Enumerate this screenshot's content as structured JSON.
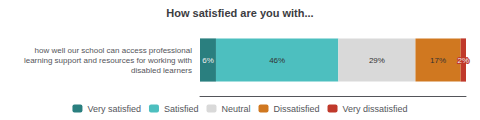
{
  "chart_data": {
    "type": "bar",
    "title": "How satisfied are you with...",
    "orientation": "horizontal",
    "stacked": true,
    "categories": [
      "how well our school can access professional\nlearning support and resources for working with\ndisabled learners"
    ],
    "series": [
      {
        "name": "Very satisfied",
        "color": "#2a7f7f",
        "values": [
          6
        ],
        "value_labels": [
          "6%"
        ]
      },
      {
        "name": "Satisfied",
        "color": "#4dbfbf",
        "values": [
          46
        ],
        "value_labels": [
          "46%"
        ]
      },
      {
        "name": "Neutral",
        "color": "#d9d9d9",
        "values": [
          29
        ],
        "value_labels": [
          "29%"
        ]
      },
      {
        "name": "Dissatisfied",
        "color": "#d07820",
        "values": [
          17
        ],
        "value_labels": [
          "17%"
        ]
      },
      {
        "name": "Very dissatisfied",
        "color": "#c0392b",
        "values": [
          2
        ],
        "value_labels": [
          "2%"
        ]
      }
    ],
    "xlim": [
      0,
      100
    ],
    "tick_labels": "y",
    "data_labels": true,
    "legend": "bottom",
    "grid": false
  }
}
